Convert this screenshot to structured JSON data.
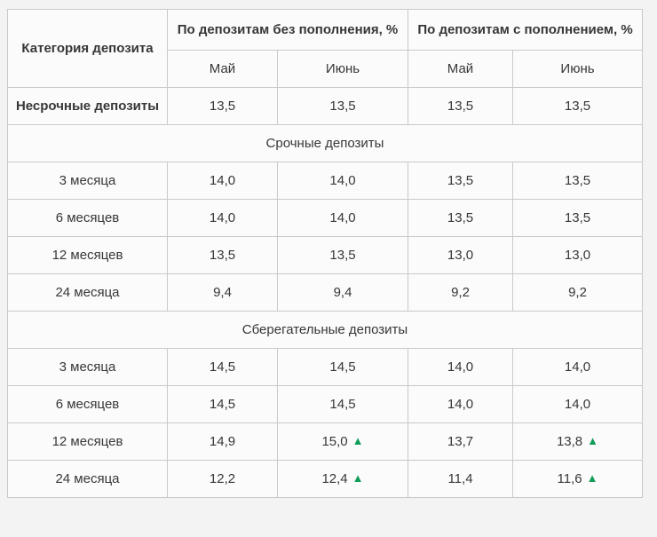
{
  "page": {
    "background": "#f3f3f3"
  },
  "table": {
    "cell_background": "#fbfbfb",
    "border_color": "#c9c9c9",
    "text_color": "#373737",
    "corner_header": "Категория депозита",
    "groups": [
      {
        "label": "По депозитам без пополнения, %",
        "months": [
          "Май",
          "Июнь"
        ]
      },
      {
        "label": "По депозитам с пополнением, %",
        "months": [
          "Май",
          "Июнь"
        ]
      }
    ],
    "up_marker": "▲",
    "up_color": "#109d58",
    "rows": [
      {
        "type": "data",
        "bold": true,
        "label": "Несрочные депозиты",
        "values": [
          {
            "v": "13,5"
          },
          {
            "v": "13,5"
          },
          {
            "v": "13,5"
          },
          {
            "v": "13,5"
          }
        ]
      },
      {
        "type": "section",
        "label": "Срочные депозиты"
      },
      {
        "type": "data",
        "label": "3 месяца",
        "values": [
          {
            "v": "14,0"
          },
          {
            "v": "14,0"
          },
          {
            "v": "13,5"
          },
          {
            "v": "13,5"
          }
        ]
      },
      {
        "type": "data",
        "label": "6 месяцев",
        "values": [
          {
            "v": "14,0"
          },
          {
            "v": "14,0"
          },
          {
            "v": "13,5"
          },
          {
            "v": "13,5"
          }
        ]
      },
      {
        "type": "data",
        "label": "12 месяцев",
        "values": [
          {
            "v": "13,5"
          },
          {
            "v": "13,5"
          },
          {
            "v": "13,0"
          },
          {
            "v": "13,0"
          }
        ]
      },
      {
        "type": "data",
        "label": "24 месяца",
        "values": [
          {
            "v": "9,4"
          },
          {
            "v": "9,4"
          },
          {
            "v": "9,2"
          },
          {
            "v": "9,2"
          }
        ]
      },
      {
        "type": "section",
        "label": "Сберегательные депозиты"
      },
      {
        "type": "data",
        "label": "3 месяца",
        "values": [
          {
            "v": "14,5"
          },
          {
            "v": "14,5"
          },
          {
            "v": "14,0"
          },
          {
            "v": "14,0"
          }
        ]
      },
      {
        "type": "data",
        "label": "6 месяцев",
        "values": [
          {
            "v": "14,5"
          },
          {
            "v": "14,5"
          },
          {
            "v": "14,0"
          },
          {
            "v": "14,0"
          }
        ]
      },
      {
        "type": "data",
        "label": "12 месяцев",
        "values": [
          {
            "v": "14,9"
          },
          {
            "v": "15,0",
            "up": true
          },
          {
            "v": "13,7"
          },
          {
            "v": "13,8",
            "up": true
          }
        ]
      },
      {
        "type": "data",
        "label": "24 месяца",
        "values": [
          {
            "v": "12,2"
          },
          {
            "v": "12,4",
            "up": true
          },
          {
            "v": "11,4"
          },
          {
            "v": "11,6",
            "up": true
          }
        ]
      }
    ]
  }
}
